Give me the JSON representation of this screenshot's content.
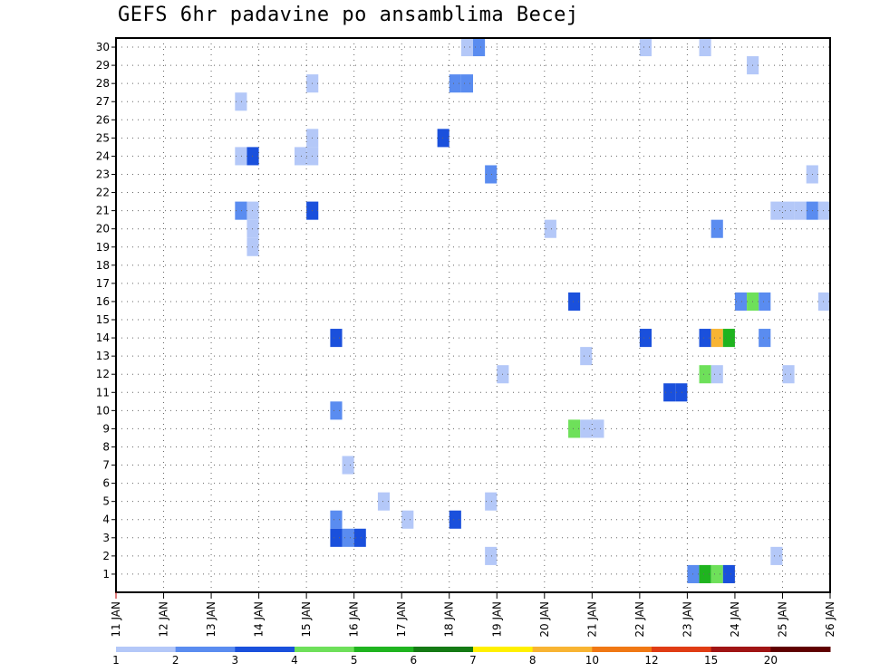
{
  "chart_data": {
    "type": "heatmap",
    "title": "GEFS 6hr padavine po ansamblima Becej",
    "xlabel": "",
    "ylabel": "",
    "x_tick_labels": [
      "11 JAN",
      "12 JAN",
      "13 JAN",
      "14 JAN",
      "15 JAN",
      "16 JAN",
      "17 JAN",
      "18 JAN",
      "19 JAN",
      "20 JAN",
      "21 JAN",
      "22 JAN",
      "23 JAN",
      "24 JAN",
      "25 JAN",
      "26 JAN"
    ],
    "x_range_days": [
      11,
      26
    ],
    "x_step_hours": 6,
    "y_tick_labels": [
      "1",
      "2",
      "3",
      "4",
      "5",
      "6",
      "7",
      "8",
      "9",
      "10",
      "11",
      "12",
      "13",
      "14",
      "15",
      "16",
      "17",
      "18",
      "19",
      "20",
      "21",
      "22",
      "23",
      "24",
      "25",
      "26",
      "27",
      "28",
      "29",
      "30"
    ],
    "ylim": [
      0,
      30
    ],
    "grid": true,
    "colorbar": {
      "labels": [
        "1",
        "2",
        "3",
        "4",
        "5",
        "6",
        "7",
        "8",
        "10",
        "12",
        "15",
        "20"
      ],
      "colors": [
        "#b4c8f8",
        "#5a8cf0",
        "#1a50dc",
        "#6ee05a",
        "#1fb41f",
        "#147a14",
        "#fff000",
        "#f8b432",
        "#f07814",
        "#e03c14",
        "#a01414",
        "#600000"
      ]
    },
    "cells": [
      {
        "day": 13.5,
        "member": 24,
        "cls": 0
      },
      {
        "day": 13.75,
        "member": 24,
        "cls": 2
      },
      {
        "day": 13.5,
        "member": 21,
        "cls": 1
      },
      {
        "day": 13.75,
        "member": 21,
        "cls": 0
      },
      {
        "day": 13.75,
        "member": 20,
        "cls": 0
      },
      {
        "day": 13.75,
        "member": 19,
        "cls": 0
      },
      {
        "day": 13.5,
        "member": 27,
        "cls": 0
      },
      {
        "day": 15.0,
        "member": 28,
        "cls": 0
      },
      {
        "day": 15.0,
        "member": 25,
        "cls": 0
      },
      {
        "day": 14.75,
        "member": 24,
        "cls": 0
      },
      {
        "day": 15.0,
        "member": 24,
        "cls": 0
      },
      {
        "day": 15.0,
        "member": 21,
        "cls": 2
      },
      {
        "day": 15.5,
        "member": 14,
        "cls": 2
      },
      {
        "day": 15.5,
        "member": 10,
        "cls": 1
      },
      {
        "day": 15.75,
        "member": 7,
        "cls": 0
      },
      {
        "day": 15.5,
        "member": 4,
        "cls": 1
      },
      {
        "day": 15.5,
        "member": 3,
        "cls": 2
      },
      {
        "day": 15.75,
        "member": 3,
        "cls": 1
      },
      {
        "day": 16.0,
        "member": 3,
        "cls": 2
      },
      {
        "day": 16.5,
        "member": 5,
        "cls": 0
      },
      {
        "day": 17.0,
        "member": 4,
        "cls": 0
      },
      {
        "day": 17.75,
        "member": 25,
        "cls": 2
      },
      {
        "day": 18.0,
        "member": 4,
        "cls": 2
      },
      {
        "day": 18.0,
        "member": 28,
        "cls": 1
      },
      {
        "day": 18.25,
        "member": 28,
        "cls": 1
      },
      {
        "day": 18.25,
        "member": 30,
        "cls": 0
      },
      {
        "day": 18.5,
        "member": 30,
        "cls": 1
      },
      {
        "day": 18.75,
        "member": 23,
        "cls": 1
      },
      {
        "day": 18.75,
        "member": 5,
        "cls": 0
      },
      {
        "day": 18.75,
        "member": 2,
        "cls": 0
      },
      {
        "day": 19.0,
        "member": 12,
        "cls": 0
      },
      {
        "day": 20.0,
        "member": 20,
        "cls": 0
      },
      {
        "day": 20.5,
        "member": 16,
        "cls": 2
      },
      {
        "day": 20.75,
        "member": 13,
        "cls": 0
      },
      {
        "day": 20.5,
        "member": 9,
        "cls": 3
      },
      {
        "day": 20.75,
        "member": 9,
        "cls": 0
      },
      {
        "day": 21.0,
        "member": 9,
        "cls": 0
      },
      {
        "day": 22.0,
        "member": 30,
        "cls": 0
      },
      {
        "day": 22.0,
        "member": 14,
        "cls": 2
      },
      {
        "day": 22.5,
        "member": 11,
        "cls": 2
      },
      {
        "day": 22.75,
        "member": 11,
        "cls": 2
      },
      {
        "day": 23.25,
        "member": 30,
        "cls": 0
      },
      {
        "day": 23.25,
        "member": 14,
        "cls": 2
      },
      {
        "day": 23.5,
        "member": 14,
        "cls": 7
      },
      {
        "day": 23.75,
        "member": 14,
        "cls": 4
      },
      {
        "day": 23.25,
        "member": 12,
        "cls": 3
      },
      {
        "day": 23.5,
        "member": 12,
        "cls": 0
      },
      {
        "day": 23.5,
        "member": 20,
        "cls": 1
      },
      {
        "day": 23.0,
        "member": 1,
        "cls": 1
      },
      {
        "day": 23.25,
        "member": 1,
        "cls": 4
      },
      {
        "day": 23.5,
        "member": 1,
        "cls": 3
      },
      {
        "day": 23.75,
        "member": 1,
        "cls": 2
      },
      {
        "day": 24.0,
        "member": 16,
        "cls": 1
      },
      {
        "day": 24.25,
        "member": 16,
        "cls": 3
      },
      {
        "day": 24.5,
        "member": 16,
        "cls": 1
      },
      {
        "day": 24.5,
        "member": 14,
        "cls": 1
      },
      {
        "day": 24.25,
        "member": 29,
        "cls": 0
      },
      {
        "day": 24.75,
        "member": 21,
        "cls": 0
      },
      {
        "day": 25.0,
        "member": 21,
        "cls": 0
      },
      {
        "day": 25.25,
        "member": 21,
        "cls": 0
      },
      {
        "day": 25.5,
        "member": 21,
        "cls": 1
      },
      {
        "day": 25.75,
        "member": 21,
        "cls": 0
      },
      {
        "day": 25.5,
        "member": 23,
        "cls": 0
      },
      {
        "day": 25.0,
        "member": 12,
        "cls": 0
      },
      {
        "day": 24.75,
        "member": 2,
        "cls": 0
      },
      {
        "day": 25.75,
        "member": 16,
        "cls": 0
      }
    ]
  }
}
